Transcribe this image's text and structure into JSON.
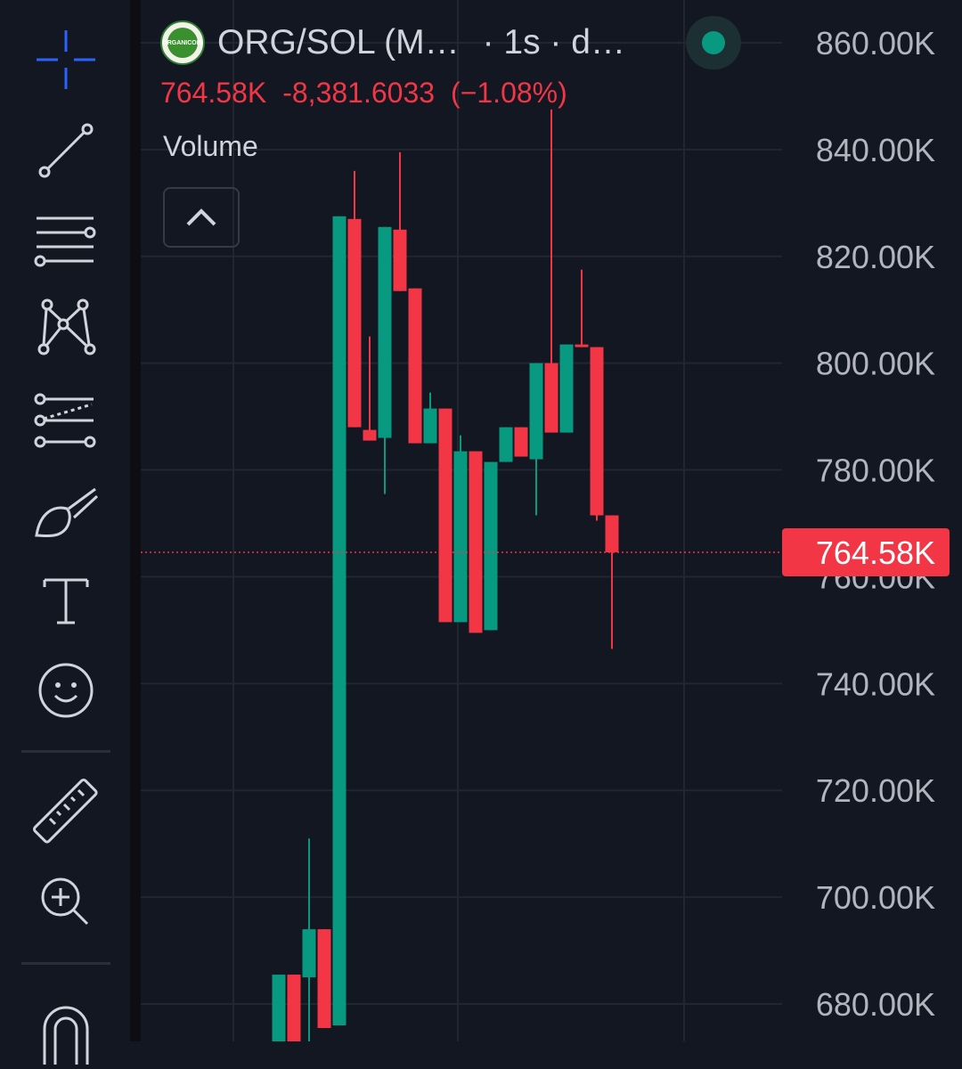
{
  "header": {
    "symbol": "ORG/SOL (M…",
    "interval": "· 1s · d…",
    "logo_text": "ORGANICOIN",
    "status_color": "#089981"
  },
  "legend": {
    "last_price": "764.58K",
    "change": "-8,381.6033",
    "change_pct": "(−1.08%)"
  },
  "volume": {
    "label": "Volume"
  },
  "colors": {
    "up": "#089981",
    "down": "#f23645",
    "background": "#131722",
    "grid": "#222631",
    "text": "#d1d4dc",
    "axis_text": "#b2b5be"
  },
  "toolbar": {
    "tools": [
      "crosshair-icon",
      "trend-line-icon",
      "horizontal-lines-icon",
      "pattern-icon",
      "fib-icon",
      "brush-icon",
      "text-icon",
      "emoji-icon",
      "ruler-icon",
      "zoom-in-icon",
      "magnet-icon"
    ]
  },
  "chart_data": {
    "type": "candlestick",
    "y_axis": {
      "min": 673,
      "max": 868,
      "ticks": [
        680,
        700,
        720,
        740,
        760,
        780,
        800,
        820,
        840,
        860
      ],
      "tick_labels": [
        "680.00K",
        "700.00K",
        "720.00K",
        "740.00K",
        "760.00K",
        "780.00K",
        "800.00K",
        "820.00K",
        "840.00K",
        "860.00K"
      ],
      "position": "right"
    },
    "current_price": 764.58,
    "current_price_label": "764.58K",
    "candles": [
      {
        "o": 667.0,
        "h": 685.5,
        "l": 664.0,
        "c": 685.5
      },
      {
        "o": 685.5,
        "h": 685.5,
        "l": 668.0,
        "c": 670.0
      },
      {
        "o": 685.0,
        "h": 711.0,
        "l": 667.0,
        "c": 694.0
      },
      {
        "o": 694.0,
        "h": 694.0,
        "l": 675.5,
        "c": 675.5
      },
      {
        "o": 676.0,
        "h": 827.5,
        "l": 676.0,
        "c": 827.5
      },
      {
        "o": 827.0,
        "h": 836.0,
        "l": 788.0,
        "c": 788.0
      },
      {
        "o": 787.5,
        "h": 805.0,
        "l": 785.5,
        "c": 785.5
      },
      {
        "o": 786.0,
        "h": 825.5,
        "l": 775.5,
        "c": 825.5
      },
      {
        "o": 825.0,
        "h": 839.5,
        "l": 813.5,
        "c": 813.5
      },
      {
        "o": 814.0,
        "h": 814.0,
        "l": 785.0,
        "c": 785.0
      },
      {
        "o": 785.0,
        "h": 794.5,
        "l": 785.0,
        "c": 791.5
      },
      {
        "o": 791.5,
        "h": 791.5,
        "l": 751.5,
        "c": 751.5
      },
      {
        "o": 751.5,
        "h": 786.5,
        "l": 751.5,
        "c": 783.5
      },
      {
        "o": 783.5,
        "h": 783.5,
        "l": 749.5,
        "c": 749.5
      },
      {
        "o": 750.0,
        "h": 781.5,
        "l": 750.0,
        "c": 781.5
      },
      {
        "o": 781.5,
        "h": 788.0,
        "l": 781.5,
        "c": 788.0
      },
      {
        "o": 788.0,
        "h": 788.0,
        "l": 782.5,
        "c": 782.5
      },
      {
        "o": 782.0,
        "h": 800.0,
        "l": 771.5,
        "c": 800.0
      },
      {
        "o": 800.0,
        "h": 847.5,
        "l": 787.0,
        "c": 787.0
      },
      {
        "o": 787.0,
        "h": 803.5,
        "l": 787.0,
        "c": 803.5
      },
      {
        "o": 803.5,
        "h": 817.5,
        "l": 803.0,
        "c": 803.0
      },
      {
        "o": 803.0,
        "h": 803.0,
        "l": 770.5,
        "c": 771.5
      },
      {
        "o": 771.5,
        "h": 771.5,
        "l": 746.5,
        "c": 764.58
      }
    ]
  }
}
